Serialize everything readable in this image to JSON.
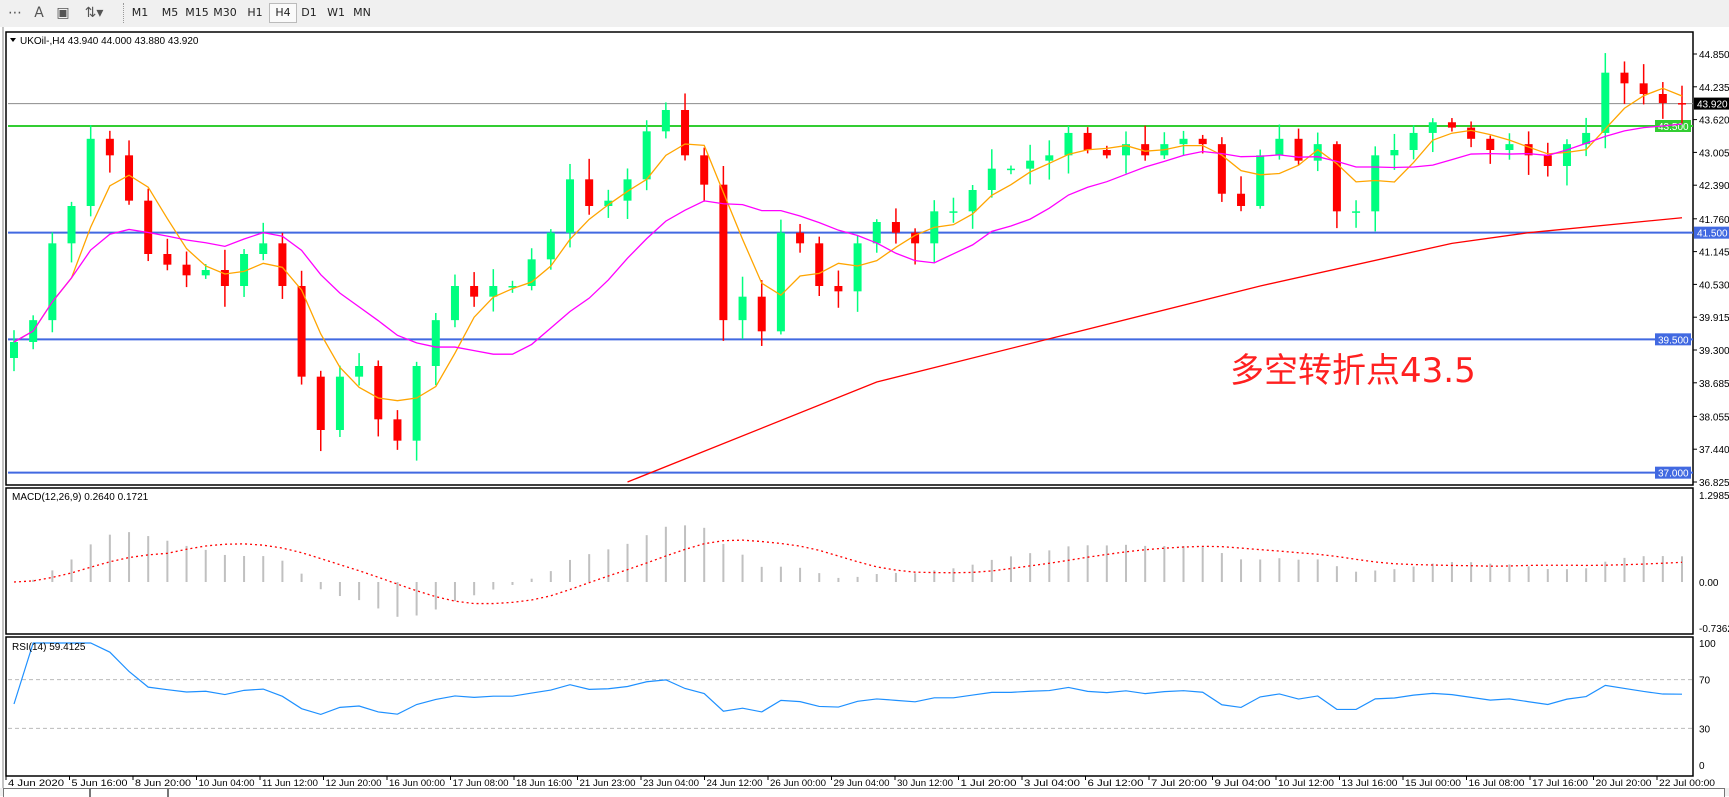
{
  "toolbar": {
    "icons": [
      "grid-fixed-icon",
      "text-icon",
      "text-label-icon",
      "arrows-icon"
    ],
    "timeframes": [
      "M1",
      "M5",
      "M15",
      "M30",
      "H1",
      "H4",
      "D1",
      "W1",
      "MN"
    ],
    "active_timeframe": "H4"
  },
  "main": {
    "header": "UKOil-,H4  43.940 44.000 43.880 43.920",
    "annotation": "多空转折点43.5",
    "annotation_color": "#ff2020"
  },
  "chart_data": [
    {
      "type": "candlestick",
      "symbol": "UKOil-",
      "timeframe": "H4",
      "last_bar": {
        "open": 43.94,
        "high": 44.0,
        "low": 43.88,
        "close": 43.92
      },
      "ylim": [
        36.825,
        45.2
      ],
      "y_ticks": [
        "44.850",
        "44.235",
        "43.620",
        "43.005",
        "42.390",
        "41.760",
        "41.145",
        "40.530",
        "39.915",
        "39.300",
        "38.685",
        "38.055",
        "37.440",
        "36.825"
      ],
      "closes": [
        39.45,
        39.86,
        41.3,
        42.0,
        43.26,
        42.95,
        42.1,
        41.1,
        40.9,
        40.7,
        40.8,
        40.5,
        41.1,
        41.3,
        40.5,
        38.8,
        37.8,
        38.8,
        39.0,
        38.0,
        37.6,
        39.0,
        39.86,
        40.5,
        40.3,
        40.5,
        40.5,
        41.0,
        41.5,
        42.5,
        42.0,
        42.1,
        42.5,
        43.4,
        43.8,
        42.95,
        42.4,
        39.86,
        40.3,
        39.65,
        41.5,
        41.3,
        40.5,
        40.4,
        41.3,
        41.7,
        41.5,
        41.3,
        41.9,
        41.9,
        42.3,
        42.7,
        42.7,
        42.85,
        42.95,
        43.37,
        43.05,
        42.95,
        43.16,
        42.95,
        43.16,
        43.26,
        43.16,
        42.23,
        42.0,
        42.95,
        43.26,
        42.85,
        43.16,
        41.9,
        41.9,
        42.95,
        43.05,
        43.37,
        43.57,
        43.47,
        43.26,
        43.05,
        43.16,
        42.95,
        42.75,
        43.16,
        43.37,
        44.5,
        44.3,
        44.1,
        43.93,
        43.92
      ],
      "up_color": "#00ff7f",
      "down_color": "#ff0000",
      "moving_averages": [
        {
          "color": "#ffa500",
          "period": 4
        },
        {
          "color": "#ff00ff",
          "period": 12
        },
        {
          "color": "#ff0000",
          "points": [
            [
              32,
              36.825
            ],
            [
              45,
              38.7
            ],
            [
              55,
              39.6
            ],
            [
              65,
              40.5
            ],
            [
              75,
              41.3
            ],
            [
              79,
              41.5
            ],
            [
              87,
              41.78
            ]
          ]
        }
      ],
      "horizontal_lines": [
        {
          "label": "43.920",
          "value": 43.92,
          "color": "#8c8c8c",
          "label_bg": "#000000"
        },
        {
          "label": "43.500",
          "value": 43.5,
          "color": "#32cd32",
          "label_bg": "#32cd32"
        },
        {
          "label": "41.500",
          "value": 41.5,
          "color": "#4169e1",
          "label_bg": "#4169e1"
        },
        {
          "label": "39.500",
          "value": 39.5,
          "color": "#4169e1",
          "label_bg": "#4169e1"
        },
        {
          "label": "37.000",
          "value": 37.0,
          "color": "#4169e1",
          "label_bg": "#4169e1"
        }
      ],
      "x_ticks": [
        "4 Jun 2020",
        "5 Jun 16:00",
        "8 Jun 20:00",
        "10 Jun 04:00",
        "11 Jun 12:00",
        "12 Jun 20:00",
        "16 Jun 00:00",
        "17 Jun 08:00",
        "18 Jun 16:00",
        "21 Jun 23:00",
        "23 Jun 04:00",
        "24 Jun 12:00",
        "26 Jun 00:00",
        "29 Jun 04:00",
        "30 Jun 12:00",
        "1 Jul 20:00",
        "3 Jul 04:00",
        "6 Jul 12:00",
        "7 Jul 20:00",
        "9 Jul 04:00",
        "10 Jul 12:00",
        "13 Jul 16:00",
        "15 Jul 00:00",
        "16 Jul 08:00",
        "17 Jul 16:00",
        "20 Jul 20:00",
        "22 Jul 00:00"
      ]
    },
    {
      "type": "bar",
      "indicator": "MACD(12,26,9)",
      "header": "MACD(12,26,9) 0.2640 0.1721",
      "main": 0.264,
      "signal": 0.1721,
      "ylim": [
        -0.7362,
        1.2985
      ],
      "y_ticks": [
        "1.2985",
        "0.00",
        "-0.7362"
      ],
      "histogram_color": "#c0c0c0",
      "signal_color": "#ff0000"
    },
    {
      "type": "line",
      "indicator": "RSI(14)",
      "header": "RSI(14) 59.4125",
      "value": 59.4125,
      "ylim": [
        0,
        100
      ],
      "y_ticks": [
        "100",
        "70",
        "30",
        "0"
      ],
      "levels": [
        70,
        30
      ],
      "color": "#1e90ff"
    }
  ]
}
